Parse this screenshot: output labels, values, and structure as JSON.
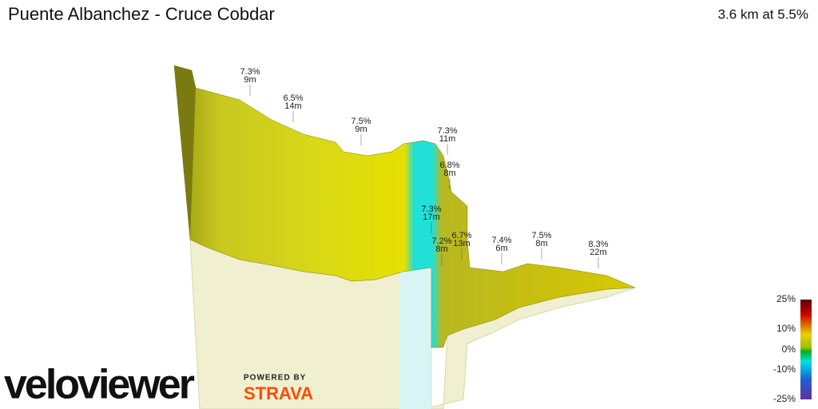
{
  "header": {
    "title": "Puente Albanchez - Cruce Cobdar",
    "summary": "3.6 km at 5.5%"
  },
  "annotations": [
    {
      "grade": "7.3%",
      "length": "9m"
    },
    {
      "grade": "6.5%",
      "length": "14m"
    },
    {
      "grade": "7.5%",
      "length": "9m"
    },
    {
      "grade": "7.3%",
      "length": "11m"
    },
    {
      "grade": "6.8%",
      "length": "8m"
    },
    {
      "grade": "7.3%",
      "length": "17m"
    },
    {
      "grade": "6.7%",
      "length": "13m"
    },
    {
      "grade": "7.2%",
      "length": "8m"
    },
    {
      "grade": "7.4%",
      "length": "6m"
    },
    {
      "grade": "7.5%",
      "length": "8m"
    },
    {
      "grade": "8.3%",
      "length": "22m"
    }
  ],
  "legend": {
    "labels": [
      "25%",
      "10%",
      "0%",
      "-10%",
      "-25%"
    ]
  },
  "branding": {
    "logo": "veloviewer",
    "powered_by": "POWERED BY",
    "partner": "STRAVA"
  }
}
